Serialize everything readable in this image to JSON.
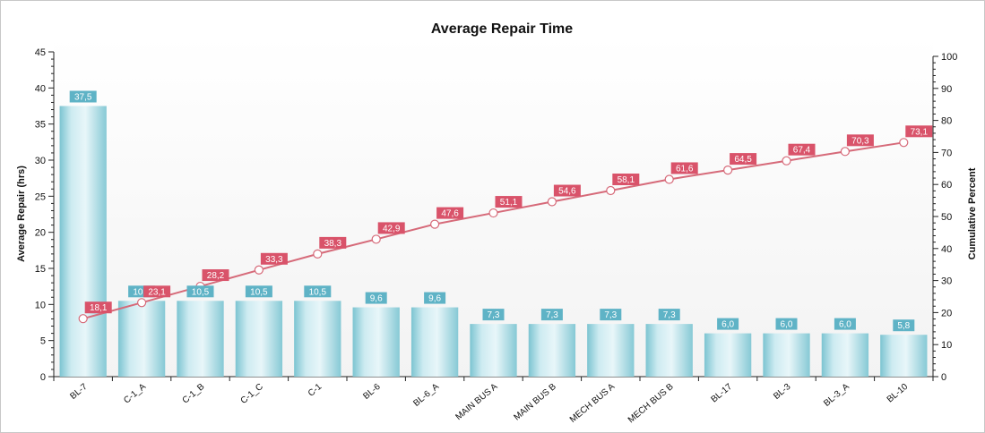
{
  "chart_data": {
    "type": "bar",
    "title": "Average Repair Time",
    "xlabel": "",
    "ylabel": "Average Repair (hrs)",
    "y2label": "Cumulative Percent",
    "ylim": [
      0,
      45
    ],
    "y2lim": [
      0,
      100
    ],
    "yticks": [
      0,
      5,
      10,
      15,
      20,
      25,
      30,
      35,
      40,
      45
    ],
    "y2ticks": [
      0,
      10,
      20,
      30,
      40,
      50,
      60,
      70,
      80,
      90,
      100
    ],
    "categories": [
      "BL-7",
      "C-1_A",
      "C-1_B",
      "C-1_C",
      "C-1",
      "BL-6",
      "BL-6_A",
      "MAIN BUS A",
      "MAIN BUS B",
      "MECH BUS A",
      "MECH BUS B",
      "BL-17",
      "BL-3",
      "BL-3_A",
      "BL-10"
    ],
    "series": [
      {
        "type": "bar",
        "values": [
          37.5,
          10.5,
          10.5,
          10.5,
          10.5,
          9.6,
          9.6,
          7.3,
          7.3,
          7.3,
          7.3,
          6.0,
          6.0,
          6.0,
          5.8
        ],
        "labels": [
          "37,5",
          "10,5",
          "10,5",
          "10,5",
          "10,5",
          "9,6",
          "9,6",
          "7,3",
          "7,3",
          "7,3",
          "7,3",
          "6,0",
          "6,0",
          "6,0",
          "5,8"
        ],
        "axis": "left"
      },
      {
        "type": "line",
        "values": [
          18.1,
          23.1,
          28.2,
          33.3,
          38.3,
          42.9,
          47.6,
          51.1,
          54.6,
          58.1,
          61.6,
          64.5,
          67.4,
          70.3,
          73.1
        ],
        "labels": [
          "18,1",
          "23,1",
          "28,2",
          "33,3",
          "38,3",
          "42,9",
          "47,6",
          "51,1",
          "54,6",
          "58,1",
          "61,6",
          "64,5",
          "67,4",
          "70,3",
          "73,1"
        ],
        "axis": "right"
      }
    ],
    "grid": false,
    "legend": "none",
    "colors": {
      "bar_dark": "#7cc4d1",
      "bar_light": "#e6f5f8",
      "bar_label_bg": "#5fb3c6",
      "line": "#d66a79",
      "line_label_bg": "#d9536a",
      "marker_fill": "#ffffff"
    }
  }
}
